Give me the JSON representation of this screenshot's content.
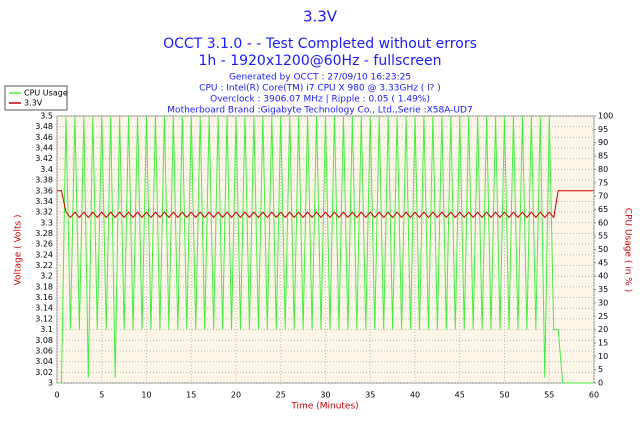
{
  "chart_data": {
    "type": "line",
    "title": "3.3V",
    "subtitle": [
      "OCCT 3.1.0 -  - Test Completed without errors",
      "1h - 1920x1200@60Hz - fullscreen"
    ],
    "notes": [
      "Generated by OCCT : 27/09/10 16:23:25",
      "CPU : Intel(R) Core(TM) i7 CPU X 980 @ 3.33GHz (  l? )",
      "Overclock : 3906.07 MHz | Ripple : 0.05 ( 1.49%)",
      "Motherboard Brand :Gigabyte Technology Co., Ltd.,Serie :X58A-UD7"
    ],
    "xlabel": "Time (Minutes)",
    "ylabel": "Voltage ( Volts )",
    "y2label": "CPU Usage ( in % )",
    "x": [
      0,
      0.5,
      1,
      1.5,
      2,
      2.5,
      3,
      3.5,
      4,
      4.5,
      5,
      5.5,
      6,
      6.5,
      7,
      7.5,
      8,
      8.5,
      9,
      9.5,
      10,
      10.5,
      11,
      11.5,
      12,
      12.5,
      13,
      13.5,
      14,
      14.5,
      15,
      15.5,
      16,
      16.5,
      17,
      17.5,
      18,
      18.5,
      19,
      19.5,
      20,
      20.5,
      21,
      21.5,
      22,
      22.5,
      23,
      23.5,
      24,
      24.5,
      25,
      25.5,
      26,
      26.5,
      27,
      27.5,
      28,
      28.5,
      29,
      29.5,
      30,
      30.5,
      31,
      31.5,
      32,
      32.5,
      33,
      33.5,
      34,
      34.5,
      35,
      35.5,
      36,
      36.5,
      37,
      37.5,
      38,
      38.5,
      39,
      39.5,
      40,
      40.5,
      41,
      41.5,
      42,
      42.5,
      43,
      43.5,
      44,
      44.5,
      45,
      45.5,
      46,
      46.5,
      47,
      47.5,
      48,
      48.5,
      49,
      49.5,
      50,
      50.5,
      51,
      51.5,
      52,
      52.5,
      53,
      53.5,
      54,
      54.5,
      55,
      55.5,
      56,
      56.5,
      57,
      57.5,
      58,
      58.5,
      59,
      59.5,
      60
    ],
    "series": [
      {
        "name": "CPU Usage",
        "color": "#44ee44",
        "axis": "y2",
        "values": [
          0,
          0,
          100,
          20,
          100,
          20,
          100,
          2,
          100,
          20,
          100,
          20,
          100,
          2,
          100,
          20,
          100,
          20,
          100,
          20,
          100,
          20,
          100,
          20,
          100,
          20,
          100,
          20,
          100,
          20,
          100,
          20,
          100,
          20,
          100,
          20,
          100,
          20,
          100,
          20,
          100,
          20,
          100,
          20,
          100,
          20,
          100,
          20,
          100,
          20,
          100,
          20,
          100,
          20,
          100,
          20,
          100,
          20,
          100,
          20,
          100,
          20,
          100,
          20,
          100,
          20,
          100,
          20,
          100,
          20,
          100,
          20,
          100,
          20,
          100,
          20,
          100,
          20,
          100,
          20,
          100,
          20,
          100,
          20,
          100,
          20,
          100,
          20,
          100,
          20,
          100,
          20,
          100,
          20,
          100,
          20,
          100,
          20,
          100,
          20,
          100,
          20,
          100,
          20,
          100,
          20,
          100,
          20,
          100,
          2,
          100,
          20,
          20,
          0,
          0,
          0,
          0,
          0,
          0,
          0,
          0
        ]
      },
      {
        "name": "3.3V",
        "color": "#cc0000",
        "values": [
          3.36,
          3.36,
          3.32,
          3.31,
          3.32,
          3.31,
          3.32,
          3.31,
          3.32,
          3.31,
          3.32,
          3.31,
          3.32,
          3.31,
          3.32,
          3.31,
          3.32,
          3.31,
          3.32,
          3.31,
          3.32,
          3.31,
          3.32,
          3.31,
          3.32,
          3.31,
          3.32,
          3.31,
          3.32,
          3.31,
          3.32,
          3.31,
          3.32,
          3.31,
          3.32,
          3.31,
          3.32,
          3.31,
          3.32,
          3.31,
          3.32,
          3.31,
          3.32,
          3.31,
          3.32,
          3.31,
          3.32,
          3.31,
          3.32,
          3.31,
          3.32,
          3.31,
          3.32,
          3.31,
          3.32,
          3.31,
          3.32,
          3.31,
          3.32,
          3.31,
          3.32,
          3.31,
          3.32,
          3.31,
          3.32,
          3.31,
          3.32,
          3.31,
          3.32,
          3.31,
          3.32,
          3.31,
          3.32,
          3.31,
          3.32,
          3.31,
          3.32,
          3.31,
          3.32,
          3.31,
          3.32,
          3.31,
          3.32,
          3.31,
          3.32,
          3.31,
          3.32,
          3.31,
          3.32,
          3.31,
          3.32,
          3.31,
          3.32,
          3.31,
          3.32,
          3.31,
          3.32,
          3.31,
          3.32,
          3.31,
          3.32,
          3.31,
          3.32,
          3.31,
          3.32,
          3.31,
          3.32,
          3.31,
          3.32,
          3.31,
          3.32,
          3.31,
          3.36,
          3.36,
          3.36,
          3.36,
          3.36,
          3.36,
          3.36,
          3.36,
          3.36
        ]
      }
    ],
    "xlim": [
      0,
      60
    ],
    "xticks": [
      0,
      5,
      10,
      15,
      20,
      25,
      30,
      35,
      40,
      45,
      50,
      55,
      60
    ],
    "ylim": [
      3,
      3.5
    ],
    "yticks": [
      3,
      3.02,
      3.04,
      3.06,
      3.08,
      3.1,
      3.12,
      3.14,
      3.16,
      3.18,
      3.2,
      3.22,
      3.24,
      3.26,
      3.28,
      3.3,
      3.32,
      3.34,
      3.36,
      3.38,
      3.4,
      3.42,
      3.44,
      3.46,
      3.48,
      3.5
    ],
    "y2lim": [
      0,
      100
    ],
    "y2ticks": [
      0,
      5,
      10,
      15,
      20,
      25,
      30,
      35,
      40,
      45,
      50,
      55,
      60,
      65,
      70,
      75,
      80,
      85,
      90,
      95,
      100
    ],
    "grid": true
  }
}
